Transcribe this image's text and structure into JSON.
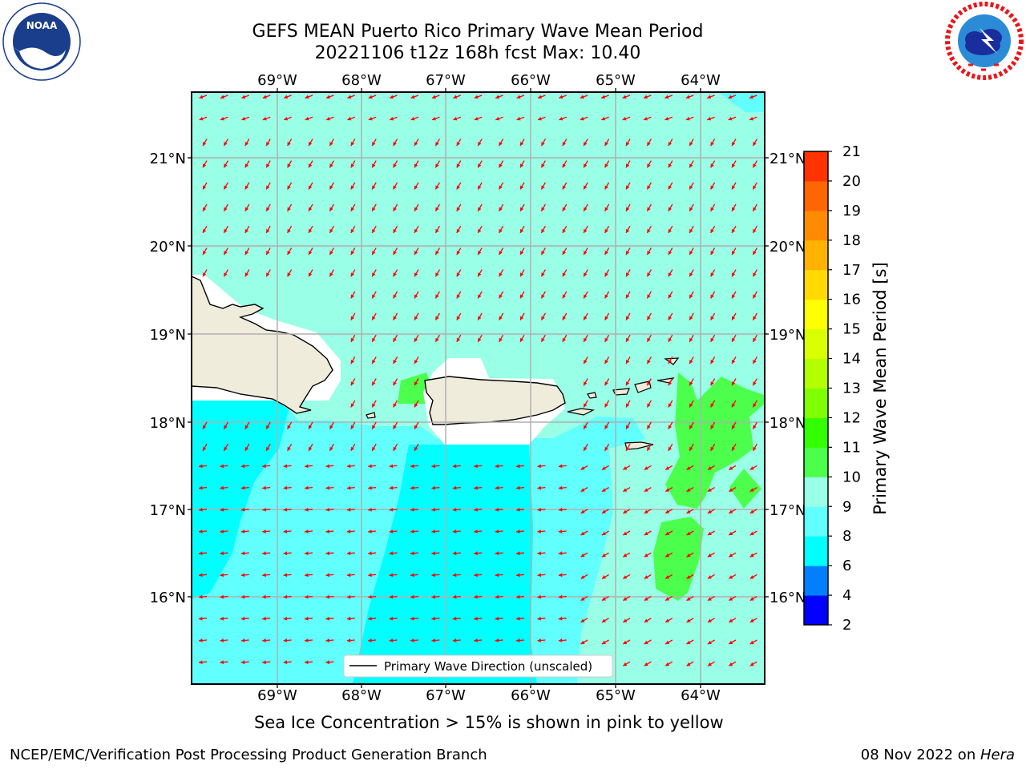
{
  "header": {
    "title_line1": "GEFS MEAN Puerto Rico Primary Wave Mean Period",
    "title_line2": "20221106 t12z 168h fcst   Max: 10.40"
  },
  "logos": {
    "left": {
      "name": "noaa-logo",
      "text": "NOAA",
      "ring_text": "NATIONAL OCEANIC AND ATMOSPHERIC ADMINISTRATION · U.S. DEPARTMENT OF COMMERCE"
    },
    "right": {
      "name": "nws-logo",
      "ring_text": "NATIONAL WEATHER SERVICE"
    }
  },
  "map": {
    "lon_labels": [
      "69°W",
      "68°W",
      "67°W",
      "66°W",
      "65°W",
      "64°W"
    ],
    "lat_labels": [
      "21°N",
      "20°N",
      "19°N",
      "18°N",
      "17°N",
      "16°N"
    ],
    "legend_label": "Primary Wave Direction (unscaled)",
    "arrow_color": "#ff0000",
    "land_color": "#efecdc"
  },
  "colorbar": {
    "label": "Primary Wave Mean Period [s]",
    "ticks": [
      "2",
      "4",
      "6",
      "8",
      "9",
      "10",
      "11",
      "12",
      "13",
      "14",
      "15",
      "16",
      "17",
      "18",
      "19",
      "20",
      "21"
    ],
    "colors": [
      "#0000ff",
      "#0080ff",
      "#00ffff",
      "#62ffff",
      "#99ffe6",
      "#4cff4c",
      "#33ff00",
      "#80ff00",
      "#b3ff00",
      "#d9ff00",
      "#ffff00",
      "#ffd900",
      "#ffb300",
      "#ff8c00",
      "#ff6600",
      "#ff3300",
      "#ff0000"
    ]
  },
  "footer": {
    "note": "Sea Ice Concentration > 15% is shown in pink to yellow",
    "left": "NCEP/EMC/Verification Post Processing Product Generation Branch",
    "right_date": "08 Nov 2022 on ",
    "right_host": "Hera"
  }
}
